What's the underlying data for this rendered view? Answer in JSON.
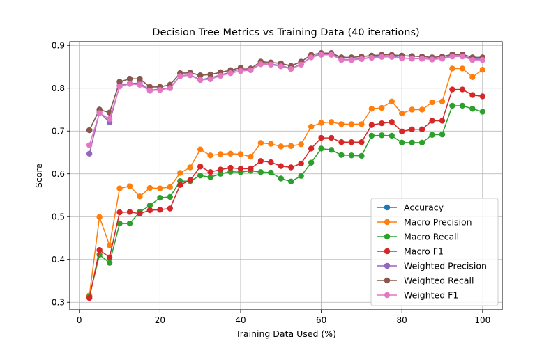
{
  "chart_data": {
    "type": "line",
    "title": "Decision Tree Metrics vs Training Data (40 iterations)",
    "xlabel": "Training Data Used (%)",
    "ylabel": "Score",
    "xlim": [
      -2.375,
      104.875
    ],
    "ylim": [
      0.2825,
      0.9085
    ],
    "xticks": [
      0,
      20,
      40,
      60,
      80,
      100
    ],
    "yticks": [
      0.3,
      0.4,
      0.5,
      0.6,
      0.7,
      0.8,
      0.9
    ],
    "grid": true,
    "legend_position": "lower-right",
    "x": [
      2.5,
      5,
      7.5,
      10,
      12.5,
      15,
      17.5,
      20,
      22.5,
      25,
      27.5,
      30,
      32.5,
      35,
      37.5,
      40,
      42.5,
      45,
      47.5,
      50,
      52.5,
      55,
      57.5,
      60,
      62.5,
      65,
      67.5,
      70,
      72.5,
      75,
      77.5,
      80,
      82.5,
      85,
      87.5,
      90,
      92.5,
      95,
      97.5,
      100
    ],
    "series": [
      {
        "name": "Accuracy",
        "color": "#1f77b4",
        "values": [
          0.702,
          0.75,
          0.743,
          0.815,
          0.822,
          0.822,
          0.803,
          0.803,
          0.808,
          0.835,
          0.836,
          0.83,
          0.832,
          0.837,
          0.842,
          0.848,
          0.846,
          0.862,
          0.86,
          0.858,
          0.852,
          0.862,
          0.878,
          0.882,
          0.882,
          0.872,
          0.872,
          0.874,
          0.876,
          0.878,
          0.878,
          0.876,
          0.875,
          0.874,
          0.872,
          0.874,
          0.879,
          0.879,
          0.872,
          0.872
        ]
      },
      {
        "name": "Macro Precision",
        "color": "#ff7f0e",
        "values": [
          0.316,
          0.499,
          0.433,
          0.566,
          0.571,
          0.547,
          0.567,
          0.566,
          0.569,
          0.602,
          0.615,
          0.657,
          0.643,
          0.646,
          0.647,
          0.646,
          0.64,
          0.672,
          0.67,
          0.664,
          0.665,
          0.669,
          0.71,
          0.719,
          0.721,
          0.716,
          0.716,
          0.716,
          0.752,
          0.754,
          0.769,
          0.741,
          0.75,
          0.75,
          0.767,
          0.769,
          0.846,
          0.846,
          0.826,
          0.843
        ]
      },
      {
        "name": "Macro Recall",
        "color": "#2ca02c",
        "values": [
          0.313,
          0.411,
          0.392,
          0.484,
          0.484,
          0.511,
          0.526,
          0.544,
          0.546,
          0.583,
          0.583,
          0.596,
          0.592,
          0.6,
          0.605,
          0.604,
          0.607,
          0.604,
          0.603,
          0.589,
          0.582,
          0.595,
          0.626,
          0.659,
          0.656,
          0.644,
          0.643,
          0.642,
          0.689,
          0.69,
          0.689,
          0.673,
          0.673,
          0.673,
          0.691,
          0.692,
          0.759,
          0.759,
          0.752,
          0.745
        ]
      },
      {
        "name": "Macro F1",
        "color": "#d62728",
        "values": [
          0.31,
          0.422,
          0.405,
          0.51,
          0.511,
          0.507,
          0.515,
          0.516,
          0.519,
          0.574,
          0.585,
          0.617,
          0.604,
          0.61,
          0.614,
          0.612,
          0.612,
          0.63,
          0.627,
          0.618,
          0.615,
          0.624,
          0.659,
          0.684,
          0.684,
          0.674,
          0.674,
          0.674,
          0.714,
          0.718,
          0.721,
          0.699,
          0.704,
          0.704,
          0.724,
          0.724,
          0.797,
          0.797,
          0.784,
          0.781
        ]
      },
      {
        "name": "Weighted Precision",
        "color": "#9467bd",
        "values": [
          0.647,
          0.744,
          0.72,
          0.806,
          0.811,
          0.812,
          0.795,
          0.798,
          0.801,
          0.829,
          0.831,
          0.82,
          0.824,
          0.831,
          0.837,
          0.845,
          0.843,
          0.857,
          0.856,
          0.853,
          0.846,
          0.856,
          0.873,
          0.88,
          0.88,
          0.867,
          0.867,
          0.869,
          0.872,
          0.875,
          0.875,
          0.871,
          0.869,
          0.869,
          0.868,
          0.87,
          0.876,
          0.876,
          0.868,
          0.868
        ]
      },
      {
        "name": "Weighted Recall",
        "color": "#8c564b",
        "values": [
          0.702,
          0.75,
          0.743,
          0.815,
          0.822,
          0.822,
          0.803,
          0.803,
          0.808,
          0.835,
          0.836,
          0.83,
          0.832,
          0.837,
          0.842,
          0.848,
          0.846,
          0.862,
          0.86,
          0.858,
          0.852,
          0.862,
          0.878,
          0.882,
          0.882,
          0.872,
          0.872,
          0.874,
          0.876,
          0.878,
          0.878,
          0.876,
          0.875,
          0.874,
          0.872,
          0.874,
          0.879,
          0.879,
          0.872,
          0.872
        ]
      },
      {
        "name": "Weighted F1",
        "color": "#e377c2",
        "values": [
          0.667,
          0.742,
          0.728,
          0.804,
          0.81,
          0.808,
          0.794,
          0.796,
          0.8,
          0.828,
          0.83,
          0.819,
          0.821,
          0.829,
          0.835,
          0.84,
          0.842,
          0.856,
          0.855,
          0.851,
          0.845,
          0.855,
          0.872,
          0.878,
          0.878,
          0.866,
          0.866,
          0.868,
          0.871,
          0.873,
          0.873,
          0.87,
          0.869,
          0.869,
          0.867,
          0.869,
          0.874,
          0.874,
          0.866,
          0.866
        ]
      }
    ]
  }
}
